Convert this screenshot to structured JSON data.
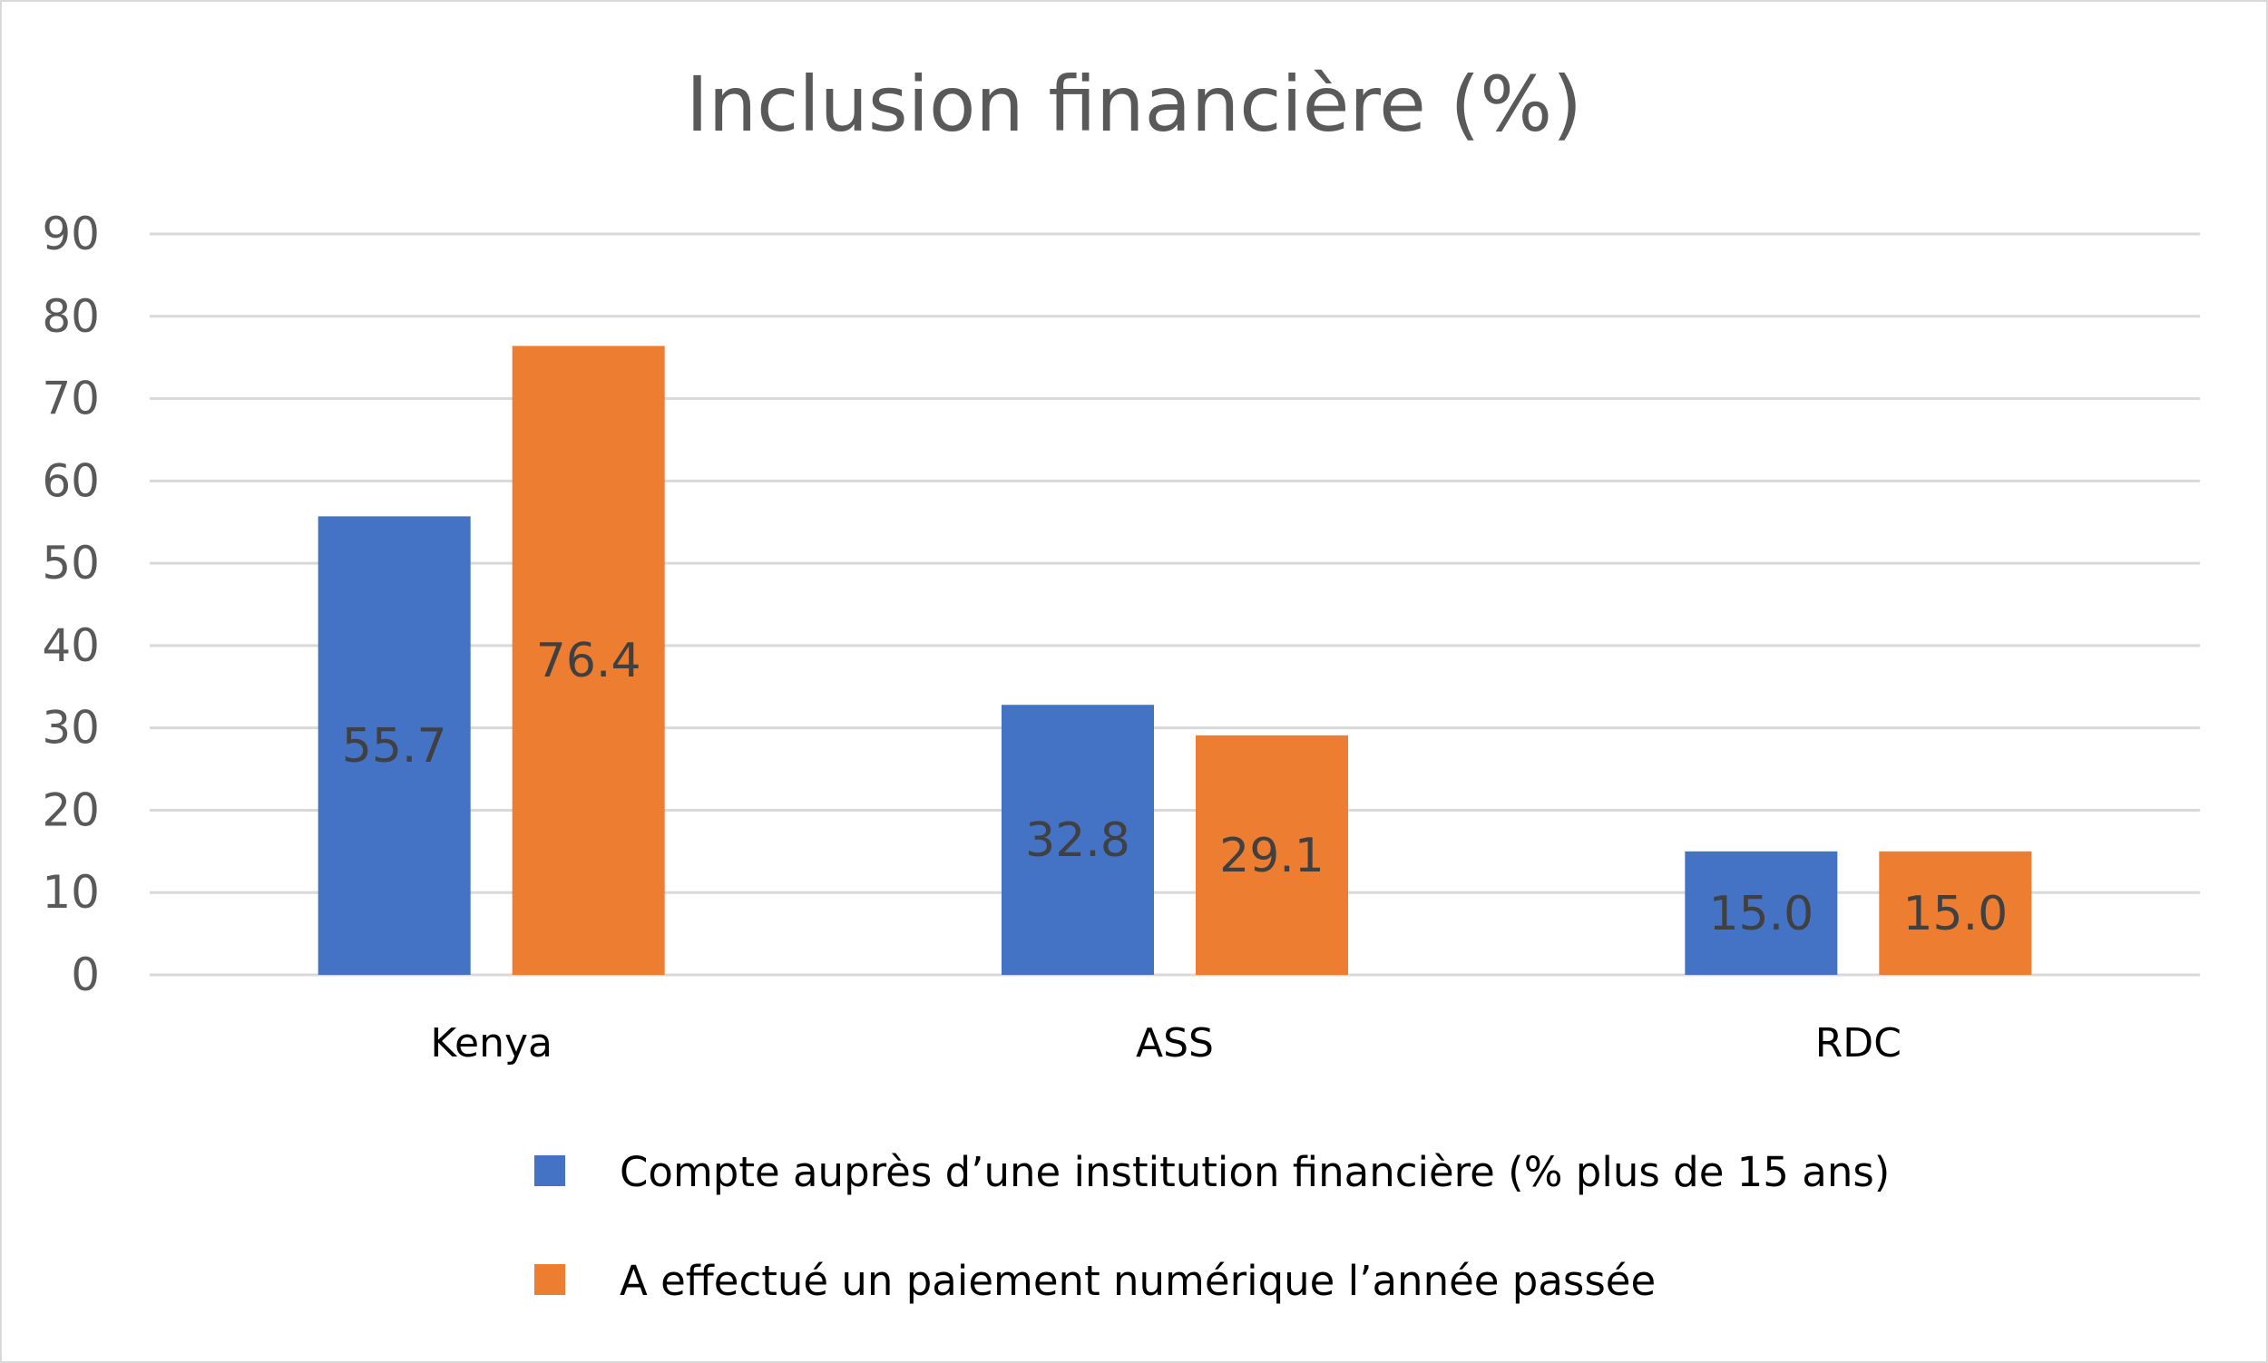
{
  "chart_data": {
    "type": "bar",
    "title": "Inclusion financière (%)",
    "categories": [
      "Kenya",
      "ASS",
      "RDC"
    ],
    "series": [
      {
        "name": "Compte auprès d’une institution financière (% plus de 15 ans)",
        "values": [
          55.7,
          32.8,
          15.0
        ],
        "labels": [
          "55.7",
          "32.8",
          "15.0"
        ],
        "color": "#4472C4"
      },
      {
        "name": "A effectué un paiement numérique l’année passée",
        "values": [
          76.4,
          29.1,
          15.0
        ],
        "labels": [
          "76.4",
          "29.1",
          "15.0"
        ],
        "color": "#ED7D31"
      }
    ],
    "ylim": [
      0,
      90
    ],
    "yticks": [
      0,
      10,
      20,
      30,
      40,
      50,
      60,
      70,
      80,
      90
    ],
    "grid": true,
    "legend_position": "bottom",
    "data_labels": "center"
  }
}
